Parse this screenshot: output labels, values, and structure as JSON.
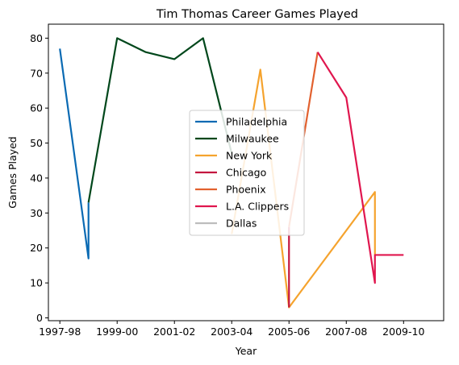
{
  "chart_data": {
    "type": "line",
    "title": "Tim Thomas  Career Games Played",
    "xlabel": "Year",
    "ylabel": "Games Played",
    "xlim": [
      1996.6,
      2010.4
    ],
    "ylim": [
      -0.8,
      84.0
    ],
    "x_ticks": [
      {
        "value": 1997,
        "label": "1997-98"
      },
      {
        "value": 1999,
        "label": "1999-00"
      },
      {
        "value": 2001,
        "label": "2001-02"
      },
      {
        "value": 2003,
        "label": "2003-04"
      },
      {
        "value": 2005,
        "label": "2005-06"
      },
      {
        "value": 2007,
        "label": "2007-08"
      },
      {
        "value": 2009,
        "label": "2009-10"
      }
    ],
    "y_ticks": [
      0,
      10,
      20,
      30,
      40,
      50,
      60,
      70,
      80
    ],
    "grid": false,
    "legend_position": "center",
    "series": [
      {
        "name": "Philadelphia",
        "color": "#0a6ab3",
        "points": [
          [
            1997,
            77
          ],
          [
            1998,
            17
          ],
          [
            1998,
            33
          ]
        ]
      },
      {
        "name": "Milwaukee",
        "color": "#00471b",
        "points": [
          [
            1998,
            33
          ],
          [
            1999,
            80
          ],
          [
            2000,
            76
          ],
          [
            2001,
            74
          ],
          [
            2002,
            80
          ],
          [
            2003,
            47
          ]
        ]
      },
      {
        "name": "New York",
        "color": "#f5a32e",
        "points": [
          [
            2003,
            24
          ],
          [
            2004,
            71
          ],
          [
            2005,
            3
          ],
          [
            2008,
            36
          ],
          [
            2008,
            18
          ]
        ]
      },
      {
        "name": "Chicago",
        "color": "#c3163f",
        "points": [
          [
            2005,
            3
          ],
          [
            2005,
            26
          ]
        ]
      },
      {
        "name": "Phoenix",
        "color": "#e2612f",
        "points": [
          [
            2005,
            26
          ],
          [
            2006,
            76
          ]
        ]
      },
      {
        "name": "L.A. Clippers",
        "color": "#e0164e",
        "points": [
          [
            2006,
            76
          ],
          [
            2007,
            63
          ],
          [
            2008,
            10
          ],
          [
            2008,
            18
          ],
          [
            2009,
            18
          ]
        ]
      },
      {
        "name": "Dallas",
        "color": "#bdbdbd",
        "points": []
      }
    ]
  }
}
